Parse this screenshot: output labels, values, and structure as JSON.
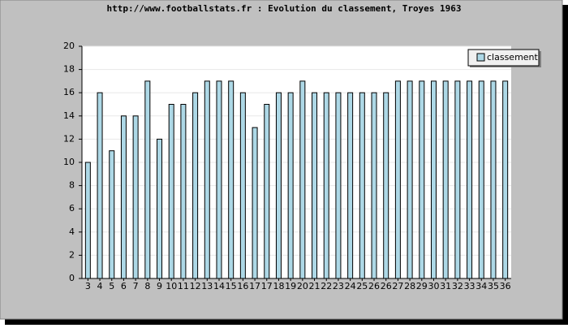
{
  "chart_data": {
    "type": "bar",
    "title": "http://www.footballstats.fr : Evolution du classement, Troyes 1963",
    "categories": [
      "3",
      "4",
      "5",
      "6",
      "7",
      "8",
      "9",
      "10",
      "11",
      "12",
      "13",
      "14",
      "15",
      "16",
      "17",
      "17",
      "18",
      "19",
      "20",
      "21",
      "22",
      "23",
      "24",
      "25",
      "26",
      "26",
      "27",
      "28",
      "29",
      "30",
      "31",
      "32",
      "33",
      "34",
      "35",
      "36"
    ],
    "series": [
      {
        "name": "classement",
        "color": "#add8e6",
        "values": [
          10,
          16,
          11,
          14,
          14,
          17,
          12,
          15,
          15,
          16,
          17,
          17,
          17,
          16,
          13,
          15,
          16,
          16,
          17,
          16,
          16,
          16,
          16,
          16,
          16,
          16,
          17,
          17,
          17,
          17,
          17,
          17,
          17,
          17,
          17,
          17
        ]
      }
    ],
    "ylim": [
      0,
      20
    ],
    "yticks": [
      0,
      2,
      4,
      6,
      8,
      10,
      12,
      14,
      16,
      18,
      20
    ],
    "grid": true,
    "legend": "top-right"
  }
}
